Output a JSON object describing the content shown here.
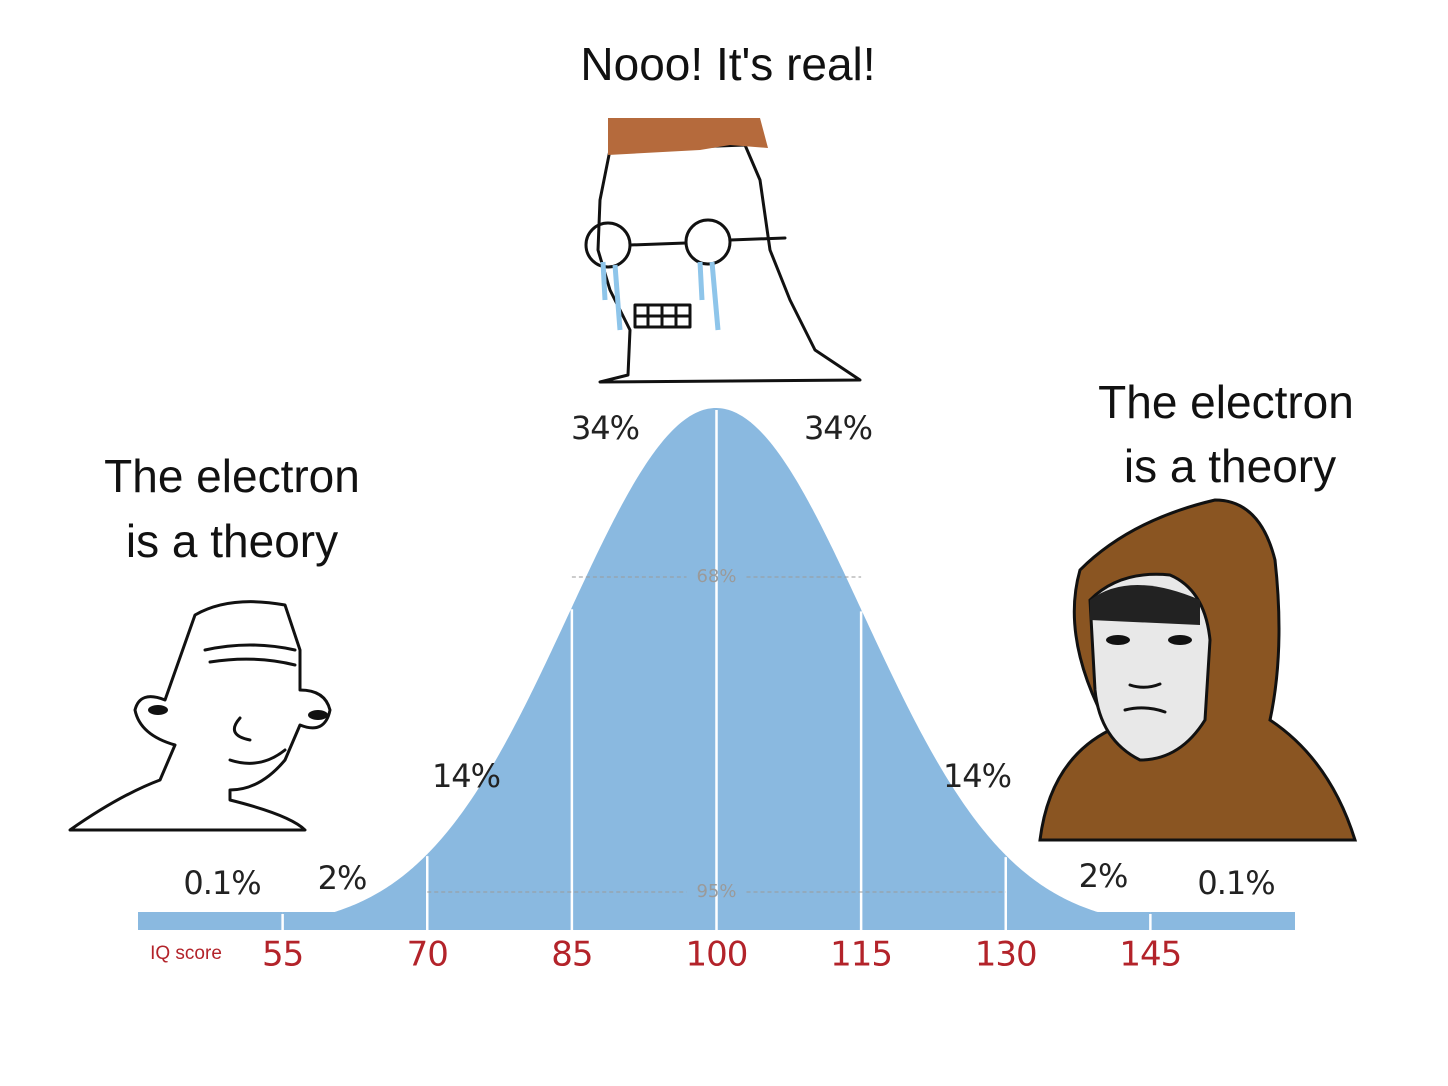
{
  "captions": {
    "top": "Nooo! It's real!",
    "left": [
      "The electron",
      "is a theory"
    ],
    "right": [
      "The electron",
      "is a theory"
    ]
  },
  "chart_data": {
    "type": "bell",
    "x_label": "IQ score",
    "color": "#8ab9e0",
    "xlim": [
      40,
      160
    ],
    "xticks": [
      55,
      70,
      85,
      100,
      115,
      130,
      145
    ],
    "regions": {
      "values": [
        0.1,
        2,
        14,
        34,
        34,
        14,
        2,
        0.1
      ],
      "value_labels": [
        "0.1%",
        "2%",
        "14%",
        "34%",
        "34%",
        "14%",
        "2%",
        "0.1%"
      ]
    },
    "spans": {
      "values": [
        68,
        95
      ],
      "value_labels": [
        "68%",
        "95%"
      ]
    }
  }
}
